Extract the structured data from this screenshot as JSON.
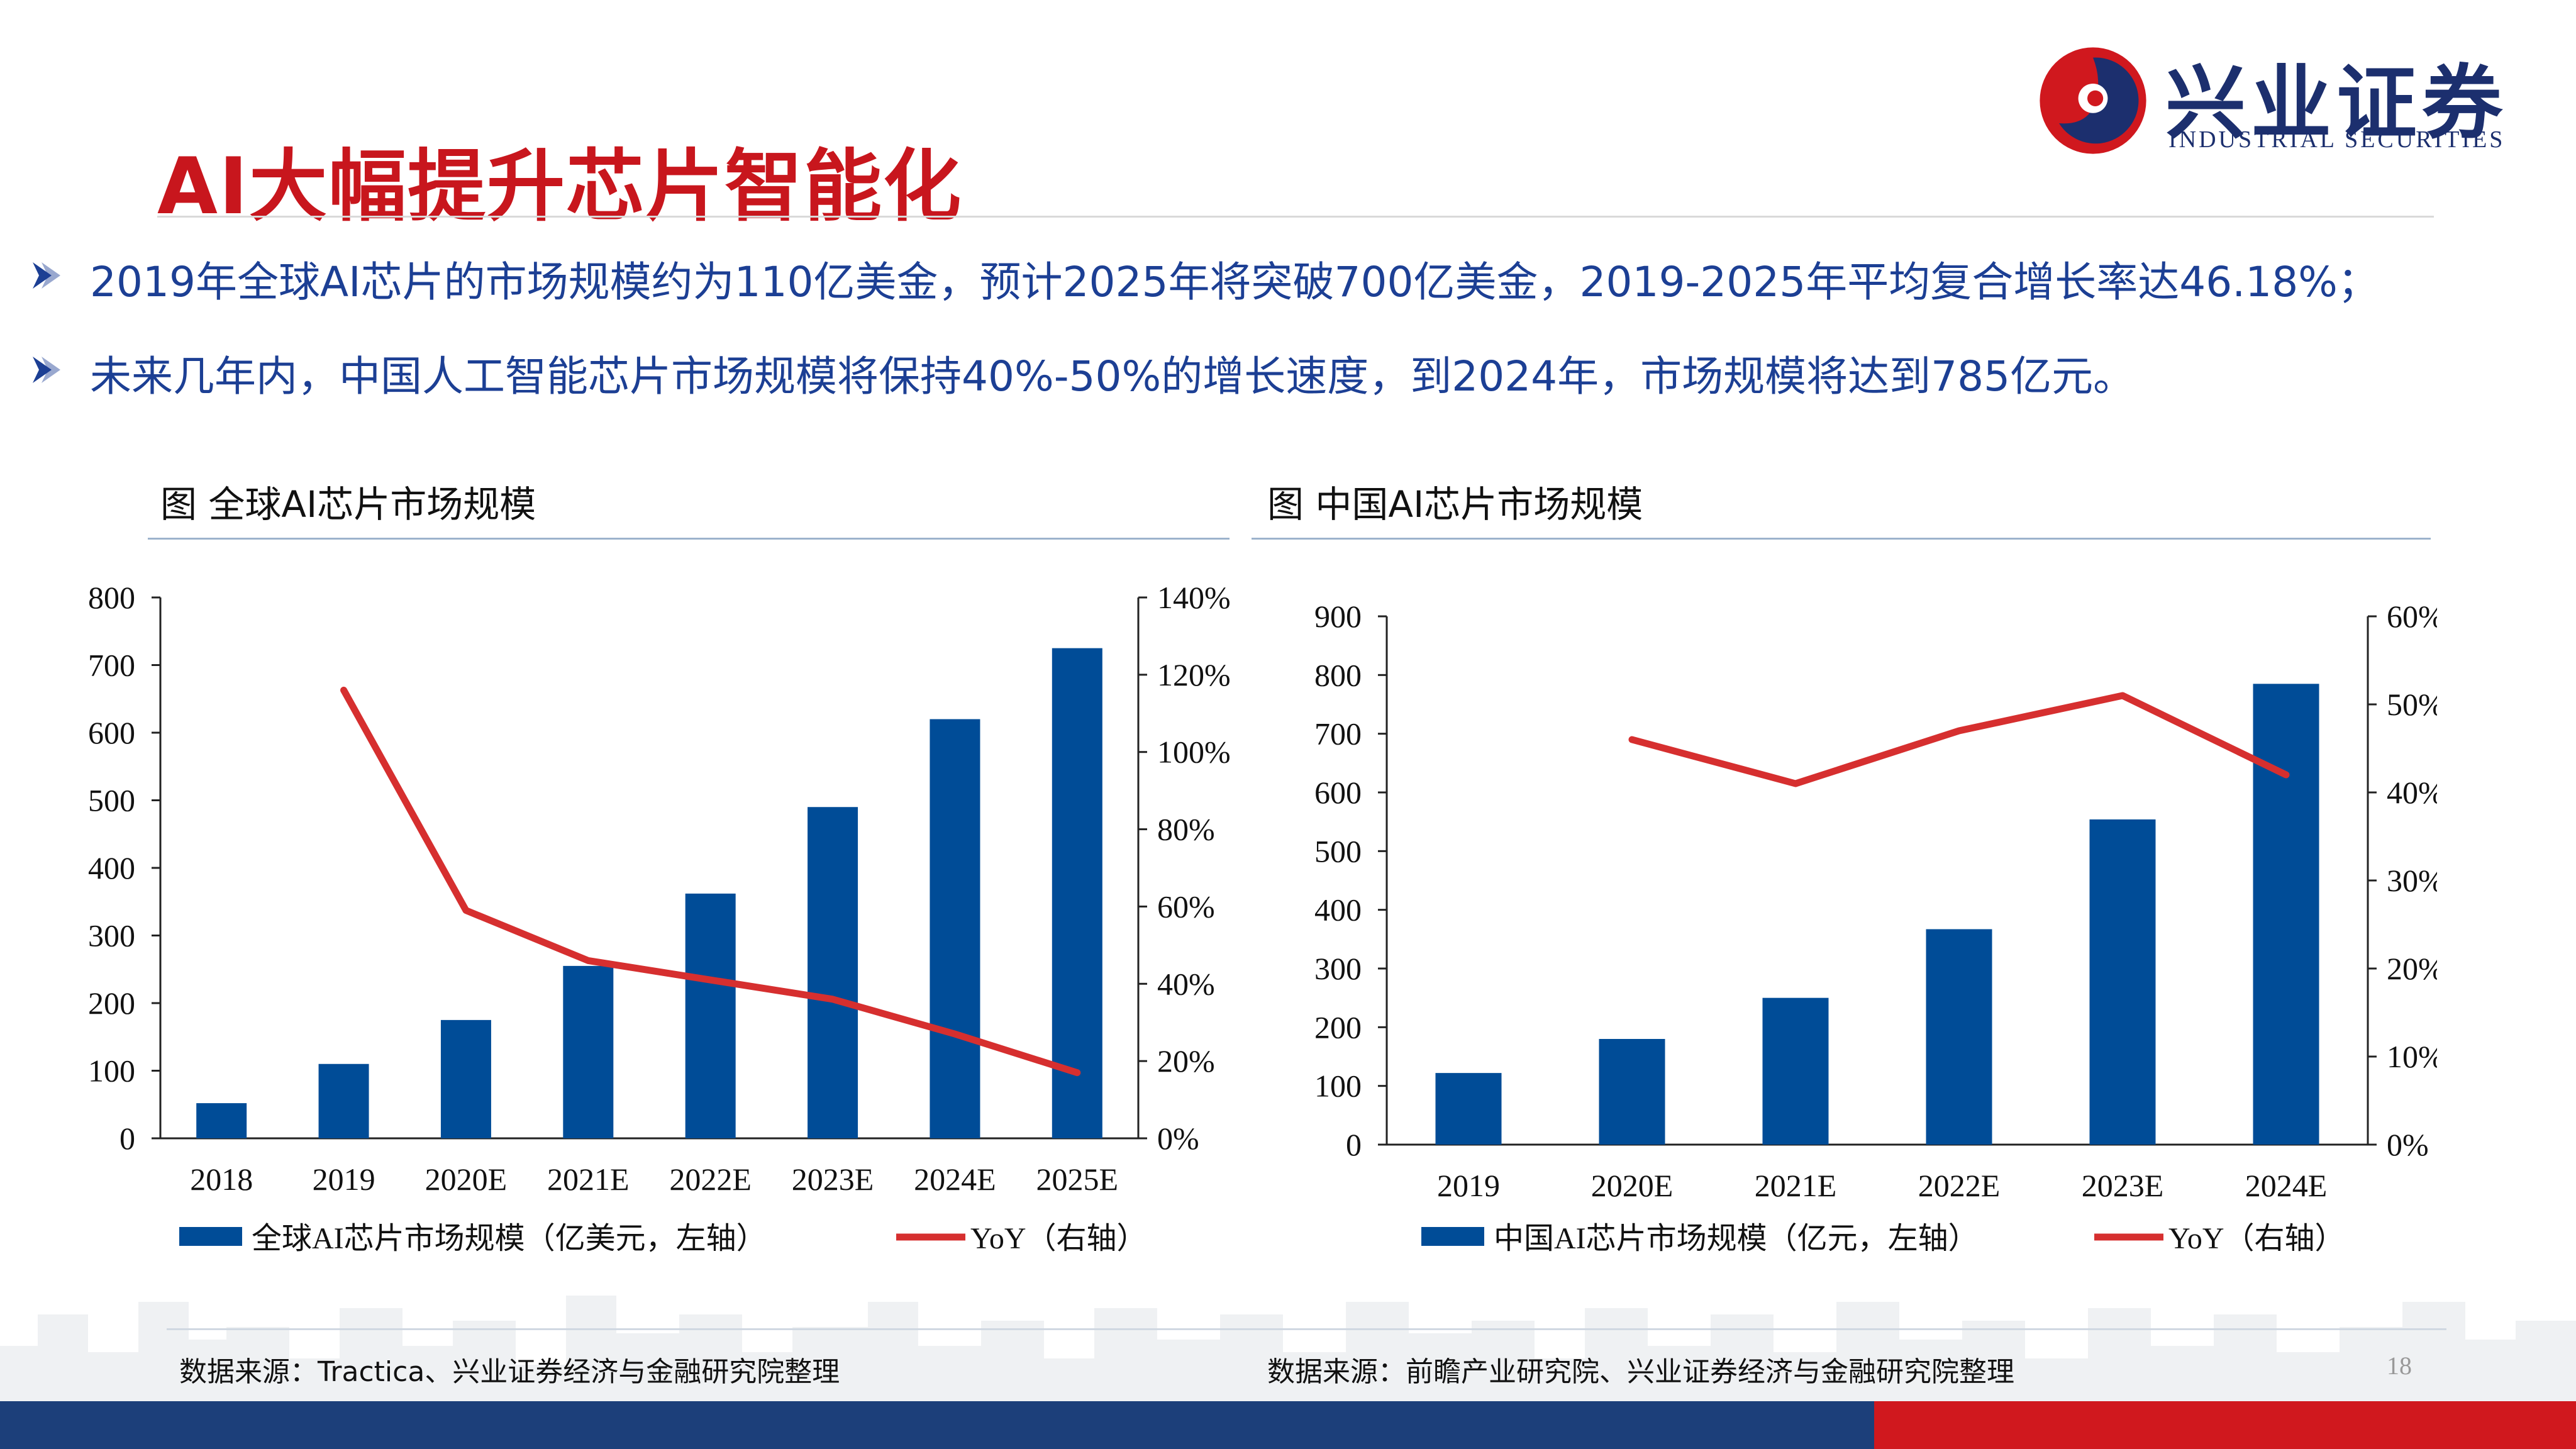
{
  "slide": {
    "title": "AI大幅提升芯片智能化",
    "page_number": "18",
    "logo": {
      "name_cn": "兴业证券",
      "name_en": "INDUSTRIAL SECURITIES"
    },
    "bullets": [
      "2019年全球AI芯片的市场规模约为110亿美金，预计2025年将突破700亿美金，2019-2025年平均复合增长率达46.18%；",
      "未来几年内，中国人工智能芯片市场规模将保持40%-50%的增长速度，到2024年，市场规模将达到785亿元。"
    ],
    "sources": [
      "数据来源：Tractica、兴业证券经济与金融研究院整理",
      "数据来源：前瞻产业研究院、兴业证券经济与金融研究院整理"
    ],
    "colors": {
      "title": "#c8161d",
      "bullet_text": "#1c3f94",
      "bar": "#004c97",
      "line": "#d62f2f",
      "band_blue": "#1c3f7a",
      "band_red": "#d0181e"
    }
  },
  "chart_data": [
    {
      "type": "bar",
      "figure_title": "图  全球AI芯片市场规模",
      "categories": [
        "2018",
        "2019",
        "2020E",
        "2021E",
        "2022E",
        "2023E",
        "2024E",
        "2025E"
      ],
      "series": [
        {
          "name": "全球AI芯片市场规模（亿美元，左轴）",
          "type": "bar",
          "axis": "left",
          "values": [
            52,
            110,
            175,
            255,
            362,
            490,
            620,
            725
          ]
        },
        {
          "name": "YoY（右轴）",
          "type": "line",
          "axis": "right",
          "values": [
            null,
            1.16,
            0.59,
            0.46,
            0.41,
            0.36,
            0.27,
            0.17
          ]
        }
      ],
      "left_axis": {
        "min": 0,
        "max": 800,
        "step": 100,
        "ticks": [
          "0",
          "100",
          "200",
          "300",
          "400",
          "500",
          "600",
          "700",
          "800"
        ]
      },
      "right_axis": {
        "min": 0,
        "max": 1.4,
        "step": 0.2,
        "ticks": [
          "0%",
          "20%",
          "40%",
          "60%",
          "80%",
          "100%",
          "120%",
          "140%"
        ]
      },
      "legend": "bottom"
    },
    {
      "type": "bar",
      "figure_title": "图  中国AI芯片市场规模",
      "categories": [
        "2019",
        "2020E",
        "2021E",
        "2022E",
        "2023E",
        "2024E"
      ],
      "series": [
        {
          "name": "中国AI芯片市场规模（亿元，左轴）",
          "type": "bar",
          "axis": "left",
          "values": [
            122,
            180,
            250,
            367,
            554,
            785
          ]
        },
        {
          "name": "YoY（右轴）",
          "type": "line",
          "axis": "right",
          "values": [
            null,
            0.46,
            0.41,
            0.47,
            0.51,
            0.42
          ]
        }
      ],
      "left_axis": {
        "min": 0,
        "max": 900,
        "step": 100,
        "ticks": [
          "0",
          "100",
          "200",
          "300",
          "400",
          "500",
          "600",
          "700",
          "800",
          "900"
        ]
      },
      "right_axis": {
        "min": 0,
        "max": 0.6,
        "step": 0.1,
        "ticks": [
          "0%",
          "10%",
          "20%",
          "30%",
          "40%",
          "50%",
          "60%"
        ]
      },
      "legend": "bottom"
    }
  ]
}
